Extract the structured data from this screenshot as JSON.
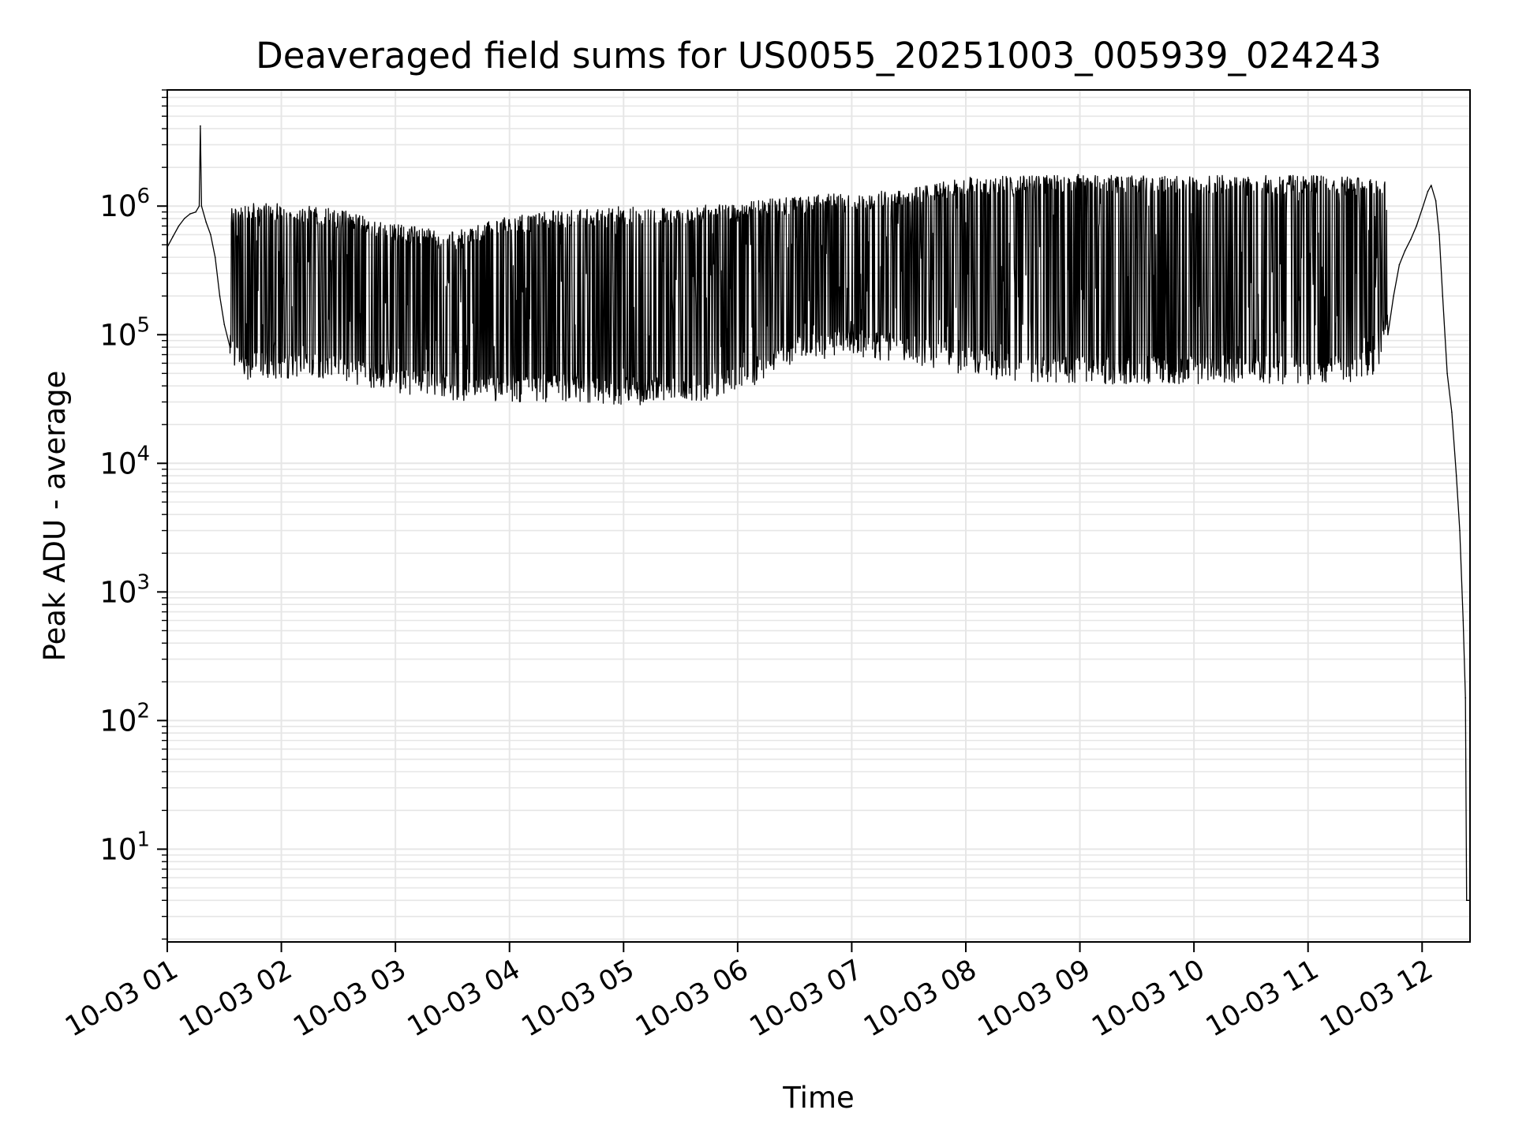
{
  "chart_data": {
    "type": "line",
    "title": "Deaveraged field sums for US0055_20251003_005939_024243",
    "xlabel": "Time",
    "ylabel": "Peak ADU - average",
    "yscale": "log",
    "grid": true,
    "xlim_hours": [
      1.0,
      12.42
    ],
    "ylim": [
      1.9,
      8000000
    ],
    "x_ticks": [
      {
        "value": 1,
        "label": "10-03 01"
      },
      {
        "value": 2,
        "label": "10-03 02"
      },
      {
        "value": 3,
        "label": "10-03 03"
      },
      {
        "value": 4,
        "label": "10-03 04"
      },
      {
        "value": 5,
        "label": "10-03 05"
      },
      {
        "value": 6,
        "label": "10-03 06"
      },
      {
        "value": 7,
        "label": "10-03 07"
      },
      {
        "value": 8,
        "label": "10-03 08"
      },
      {
        "value": 9,
        "label": "10-03 09"
      },
      {
        "value": 10,
        "label": "10-03 10"
      },
      {
        "value": 11,
        "label": "10-03 11"
      },
      {
        "value": 12,
        "label": "10-03 12"
      }
    ],
    "y_ticks": [
      {
        "value": 10,
        "base": "10",
        "exp": "1"
      },
      {
        "value": 100,
        "base": "10",
        "exp": "2"
      },
      {
        "value": 1000,
        "base": "10",
        "exp": "3"
      },
      {
        "value": 10000,
        "base": "10",
        "exp": "4"
      },
      {
        "value": 100000,
        "base": "10",
        "exp": "5"
      },
      {
        "value": 1000000,
        "base": "10",
        "exp": "6"
      }
    ],
    "series": [
      {
        "name": "Peak ADU - average",
        "color": "#000000",
        "envelope": {
          "x": [
            1.0,
            1.2,
            1.3,
            1.45,
            1.55,
            1.7,
            2.0,
            2.5,
            3.0,
            3.5,
            4.0,
            4.5,
            5.0,
            5.5,
            6.0,
            6.5,
            7.0,
            7.5,
            8.0,
            8.5,
            9.0,
            9.5,
            10.0,
            10.5,
            11.0,
            11.4,
            11.6,
            11.8,
            12.0
          ],
          "upper": [
            500000,
            850000,
            1000000,
            700000,
            900000,
            1000000,
            1000000,
            900000,
            700000,
            600000,
            800000,
            900000,
            950000,
            950000,
            1000000,
            1150000,
            1200000,
            1300000,
            1600000,
            1650000,
            1700000,
            1650000,
            1650000,
            1650000,
            1650000,
            1600000,
            1550000,
            1500000,
            1500000
          ],
          "lower": [
            500000,
            850000,
            900000,
            200000,
            80000,
            60000,
            60000,
            60000,
            45000,
            40000,
            40000,
            40000,
            38000,
            38000,
            45000,
            80000,
            90000,
            80000,
            65000,
            55000,
            55000,
            55000,
            55000,
            55000,
            55000,
            55000,
            65000,
            300000,
            600000
          ]
        },
        "points": [
          [
            1.0,
            480000
          ],
          [
            1.05,
            580000
          ],
          [
            1.1,
            700000
          ],
          [
            1.15,
            800000
          ],
          [
            1.2,
            870000
          ],
          [
            1.25,
            900000
          ],
          [
            1.28,
            1000000
          ],
          [
            1.29,
            4200000
          ],
          [
            1.3,
            1000000
          ],
          [
            1.34,
            750000
          ],
          [
            1.38,
            600000
          ],
          [
            1.42,
            400000
          ],
          [
            1.46,
            200000
          ],
          [
            1.5,
            120000
          ],
          [
            1.55,
            80000
          ],
          [
            11.7,
            100000
          ],
          [
            11.75,
            200000
          ],
          [
            11.8,
            350000
          ],
          [
            11.85,
            450000
          ],
          [
            11.9,
            550000
          ],
          [
            11.95,
            700000
          ],
          [
            12.0,
            950000
          ],
          [
            12.05,
            1300000
          ],
          [
            12.08,
            1450000
          ],
          [
            12.12,
            1100000
          ],
          [
            12.15,
            600000
          ],
          [
            12.18,
            200000
          ],
          [
            12.22,
            50000
          ],
          [
            12.26,
            25000
          ],
          [
            12.3,
            8000
          ],
          [
            12.33,
            3000
          ],
          [
            12.36,
            600
          ],
          [
            12.38,
            150
          ],
          [
            12.39,
            4
          ],
          [
            12.42,
            4
          ]
        ]
      }
    ]
  }
}
